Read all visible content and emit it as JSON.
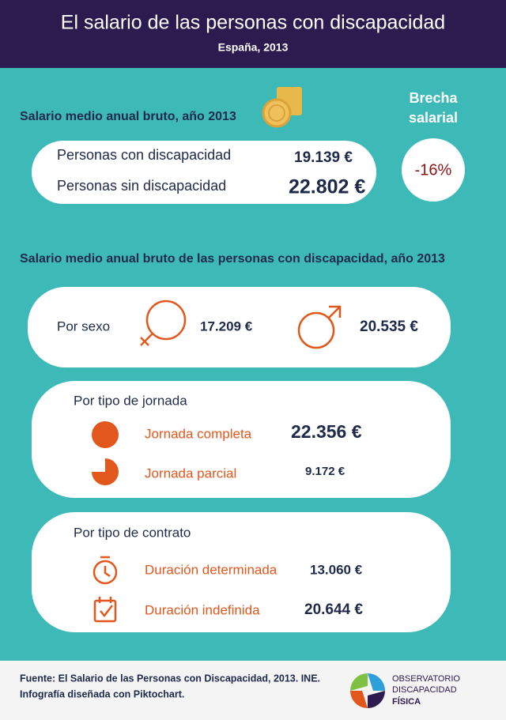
{
  "header": {
    "title": "El salario de las personas con discapacidad",
    "subtitle": "España, 2013"
  },
  "summary": {
    "title": "Salario medio anual bruto, año 2013",
    "rows": [
      [
        "Personas con discapacidad",
        "19.139 €"
      ],
      [
        "Personas sin discapacidad",
        "22.802 €"
      ]
    ],
    "gap_label": [
      "Brecha",
      "salarial"
    ],
    "gap_value": "-16%"
  },
  "detail": {
    "title": "Salario medio anual bruto de las personas con discapacidad, año 2013",
    "by_sex": {
      "label": "Por sexo",
      "female": "17.209 €",
      "male": "20.535 €"
    },
    "by_workday": {
      "title": "Por tipo de jornada",
      "rows": [
        [
          "Jornada completa",
          "22.356 €"
        ],
        [
          "Jornada parcial",
          "9.172 €"
        ]
      ]
    },
    "by_contract": {
      "title": "Por tipo de contrato",
      "rows": [
        [
          "Duración determinada",
          "13.060 €"
        ],
        [
          "Duración indefinida",
          "20.644 €"
        ]
      ]
    }
  },
  "footer": {
    "source": [
      "Fuente: El Salario de las Personas con Discapacidad, 2013. INE.",
      "Infografía diseñada con Piktochart."
    ],
    "logo": [
      "OBSERVATORIO",
      "DISCAPACIDAD",
      "FÍSICA"
    ]
  }
}
